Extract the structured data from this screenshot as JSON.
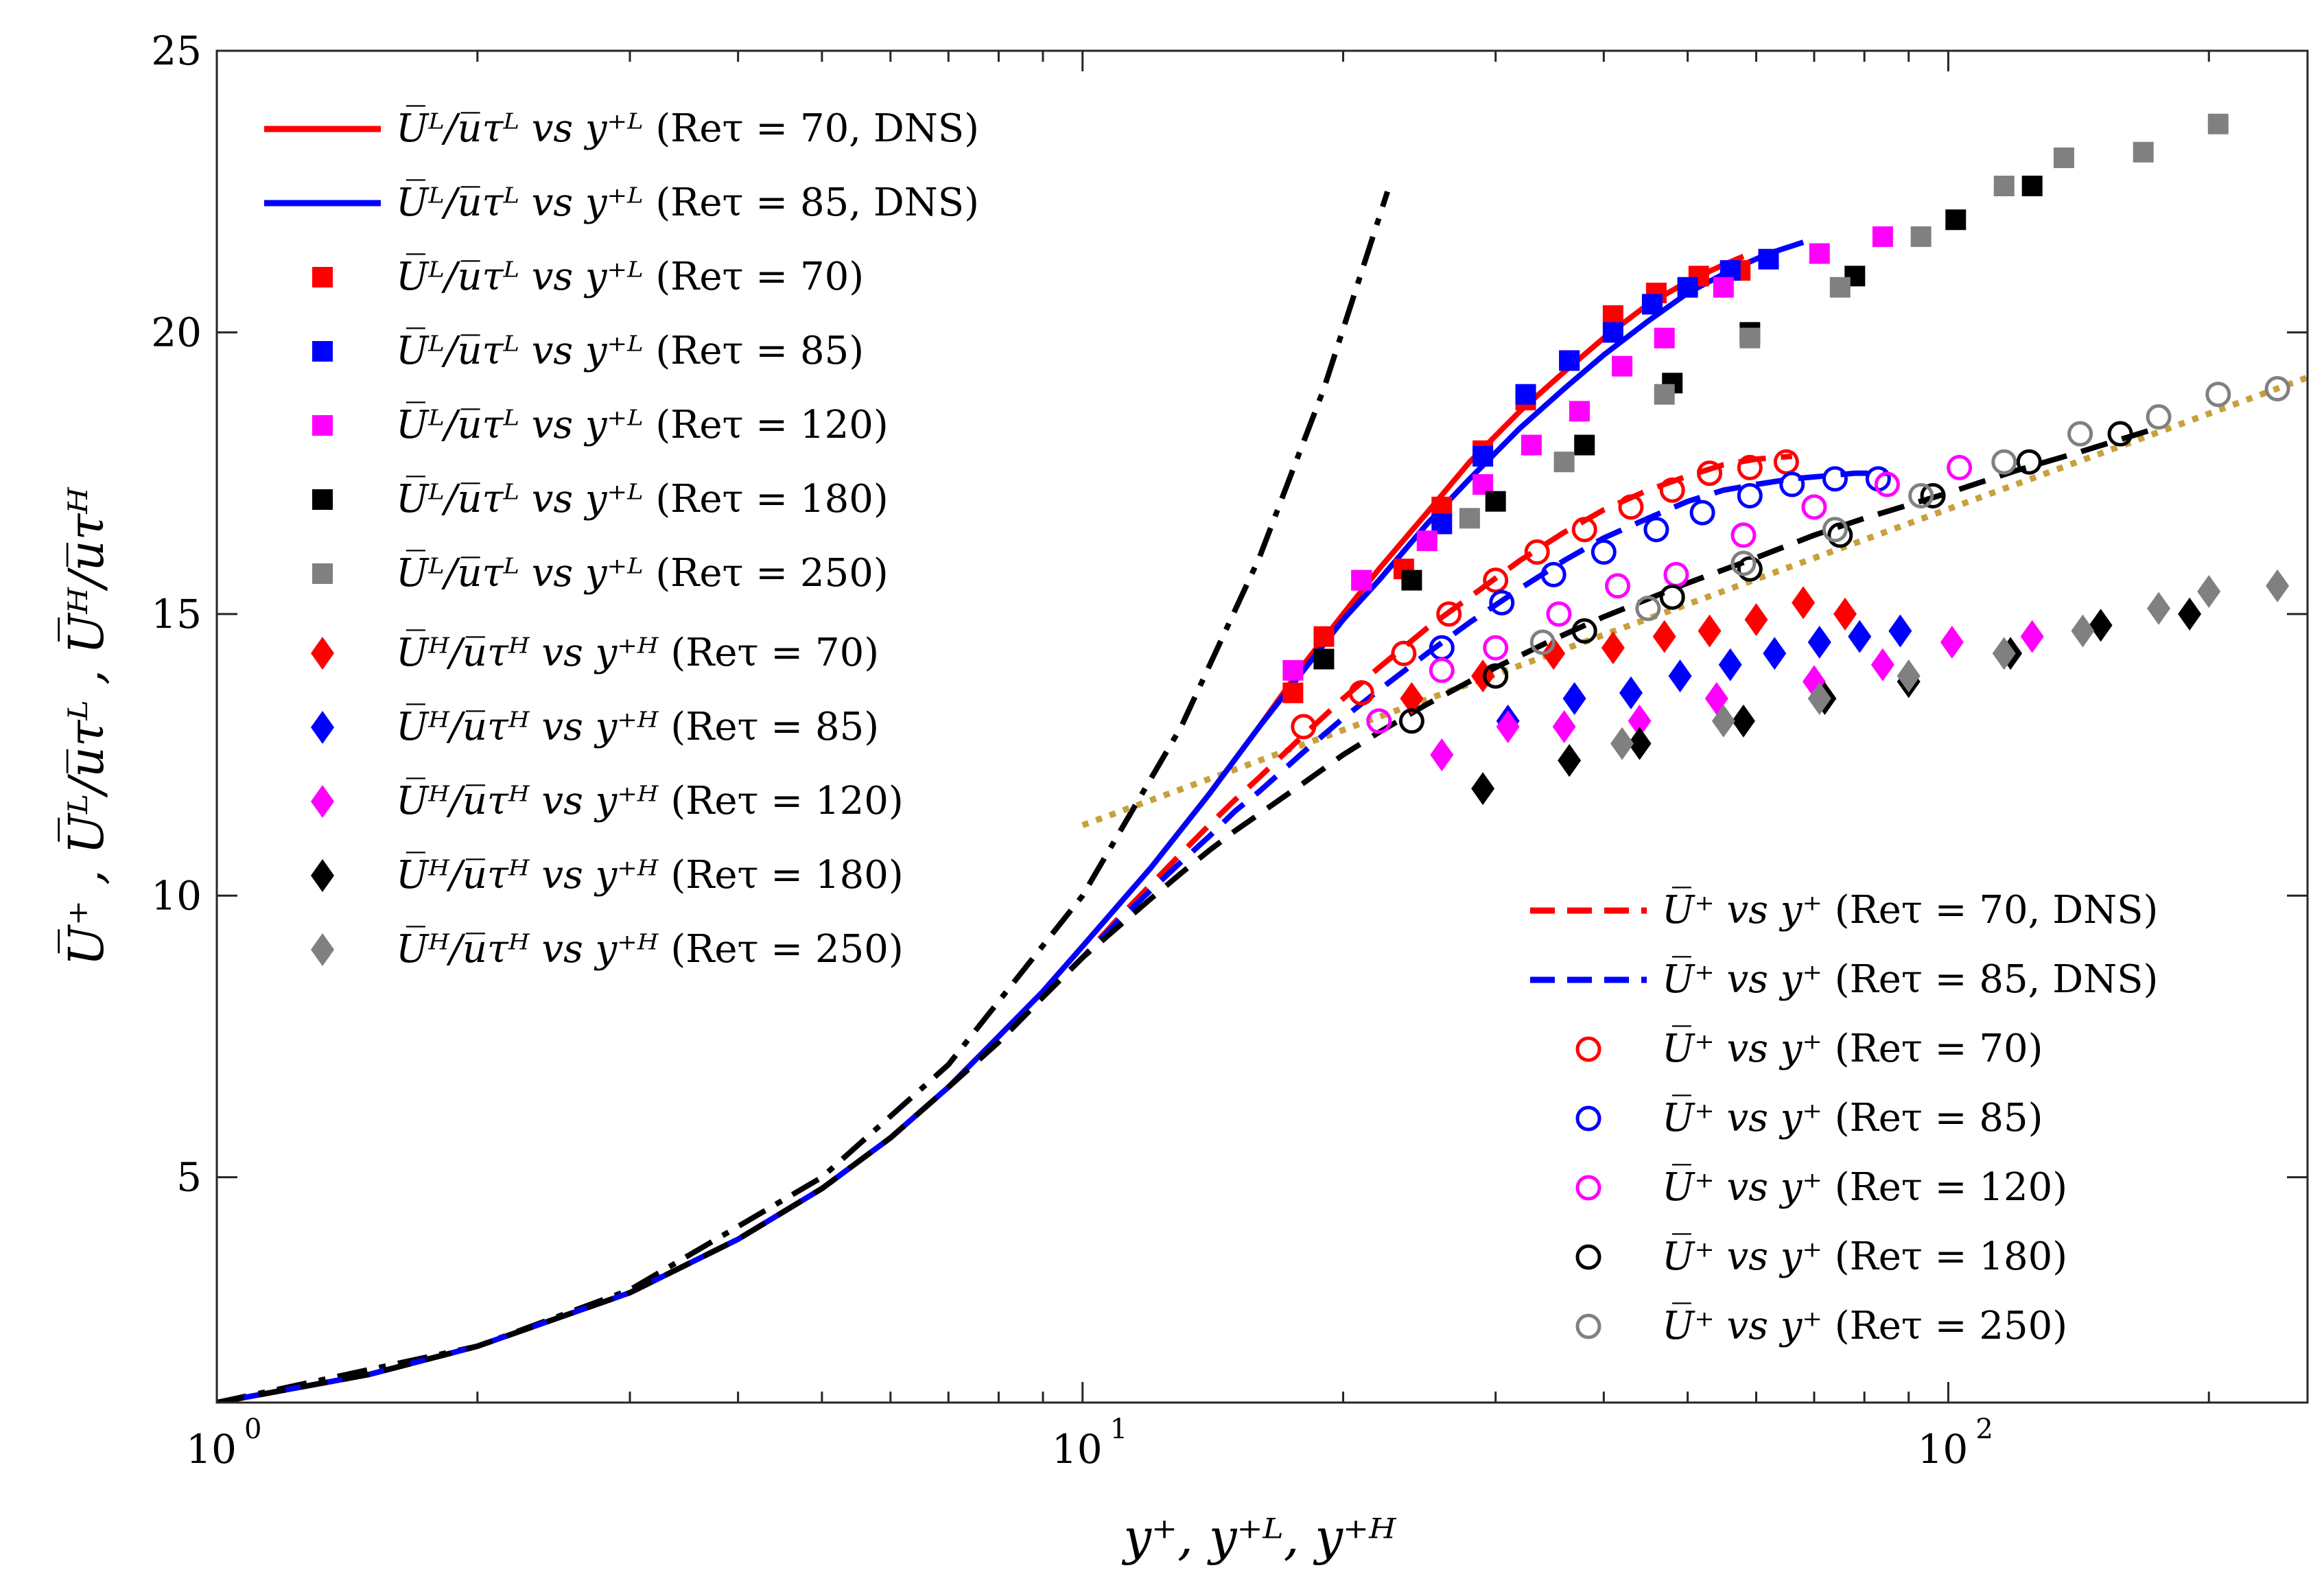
{
  "chart_data": {
    "type": "line",
    "xscale": "log",
    "xlim": [
      1,
      260
    ],
    "ylim": [
      1,
      25
    ],
    "xlabel": "y⁺,  y⁺ᴸ,  y⁺ᴴ",
    "ylabel": "U̅⁺ ,  U̅ᴸ/u̅τᴸ ,  U̅ᴴ/u̅τᴴ",
    "xticks": [
      {
        "value": 1,
        "base": "10",
        "exp": "0"
      },
      {
        "value": 10,
        "base": "10",
        "exp": "1"
      },
      {
        "value": 100,
        "base": "10",
        "exp": "2"
      }
    ],
    "yticks": [
      {
        "value": 5,
        "label": "5"
      },
      {
        "value": 10,
        "label": "10"
      },
      {
        "value": 15,
        "label": "15"
      },
      {
        "value": 20,
        "label": "20"
      },
      {
        "value": 25,
        "label": "25"
      }
    ],
    "reference_lines": [
      {
        "name": "viscous-sublayer",
        "style": "dashdot",
        "color": "#000000",
        "x": [
          1,
          2,
          3,
          5,
          7,
          10,
          13,
          16,
          19,
          22.5
        ],
        "y": [
          1,
          2,
          3,
          5,
          7,
          10,
          13,
          16,
          19,
          22.5
        ]
      },
      {
        "name": "log-law",
        "style": "dotted",
        "color": "#C8A03C",
        "x": [
          10,
          20,
          40,
          80,
          160,
          260
        ],
        "y": [
          11.25,
          12.94,
          14.63,
          16.32,
          18.01,
          19.2
        ]
      }
    ],
    "series": [
      {
        "name": "UL/utauL vs y+L (Re_tau = 70, DNS)",
        "kind": "line",
        "dash": "solid",
        "color": "#FF0000",
        "x": [
          1,
          1.5,
          2,
          3,
          4,
          5,
          6,
          7,
          8,
          9,
          10,
          12,
          14,
          16,
          18,
          20,
          22,
          25,
          28,
          32,
          36,
          40,
          45,
          50,
          55,
          58
        ],
        "y": [
          1,
          1.5,
          2,
          2.95,
          3.9,
          4.8,
          5.7,
          6.6,
          7.5,
          8.3,
          9.1,
          10.5,
          11.8,
          13.0,
          14.1,
          15.0,
          15.8,
          16.8,
          17.7,
          18.6,
          19.3,
          19.9,
          20.5,
          20.9,
          21.2,
          21.35
        ]
      },
      {
        "name": "UL/utauL vs y+L (Re_tau = 85, DNS)",
        "kind": "line",
        "dash": "solid",
        "color": "#0000FF",
        "x": [
          1,
          1.5,
          2,
          3,
          4,
          5,
          6,
          7,
          8,
          9,
          10,
          12,
          14,
          16,
          18,
          20,
          22,
          25,
          28,
          32,
          36,
          40,
          45,
          50,
          56,
          62,
          68
        ],
        "y": [
          1,
          1.5,
          2,
          2.95,
          3.9,
          4.8,
          5.7,
          6.6,
          7.5,
          8.3,
          9.1,
          10.5,
          11.8,
          13.0,
          14.0,
          14.9,
          15.6,
          16.6,
          17.4,
          18.3,
          19.0,
          19.6,
          20.2,
          20.7,
          21.1,
          21.4,
          21.6
        ]
      },
      {
        "name": "U+ vs y+ (Re_tau = 70, DNS)",
        "kind": "line",
        "dash": "dashed",
        "color": "#FF0000",
        "x": [
          1,
          1.5,
          2,
          3,
          4,
          5,
          6,
          7,
          8,
          9,
          10,
          11,
          12,
          13,
          14,
          15,
          16,
          18,
          20,
          22,
          25,
          28,
          32,
          36,
          40,
          45,
          50,
          55,
          60,
          66
        ],
        "y": [
          1,
          1.5,
          2,
          2.95,
          3.9,
          4.8,
          5.7,
          6.6,
          7.4,
          8.2,
          8.9,
          9.6,
          10.2,
          10.75,
          11.25,
          11.7,
          12.1,
          12.85,
          13.5,
          14.05,
          14.75,
          15.3,
          15.95,
          16.45,
          16.85,
          17.2,
          17.45,
          17.65,
          17.75,
          17.8
        ]
      },
      {
        "name": "U+ vs y+ (Re_tau = 85, DNS)",
        "kind": "line",
        "dash": "dashed",
        "color": "#0000FF",
        "x": [
          1,
          1.5,
          2,
          3,
          4,
          5,
          6,
          7,
          8,
          9,
          10,
          11,
          12,
          13,
          14,
          15,
          16,
          18,
          20,
          22,
          25,
          28,
          32,
          36,
          40,
          45,
          50,
          55,
          60,
          66,
          72,
          78,
          85
        ],
        "y": [
          1,
          1.5,
          2,
          2.95,
          3.9,
          4.8,
          5.7,
          6.6,
          7.4,
          8.2,
          8.9,
          9.55,
          10.1,
          10.6,
          11.05,
          11.5,
          11.85,
          12.55,
          13.15,
          13.65,
          14.3,
          14.85,
          15.45,
          15.95,
          16.35,
          16.7,
          17.0,
          17.2,
          17.3,
          17.4,
          17.45,
          17.5,
          17.5
        ]
      },
      {
        "name": "U+ vs y+ (Re_tau = 180)",
        "kind": "line",
        "dash": "dashed",
        "color": "#000000",
        "x": [
          1,
          1.5,
          2,
          3,
          4,
          5,
          6,
          7,
          8,
          9,
          10,
          11,
          12,
          13,
          14,
          15,
          16,
          18,
          20,
          22,
          25,
          30,
          35,
          40,
          50,
          60,
          70,
          80,
          100,
          120,
          140,
          170
        ],
        "y": [
          1,
          1.5,
          2,
          2.95,
          3.9,
          4.8,
          5.7,
          6.6,
          7.4,
          8.2,
          8.9,
          9.45,
          9.95,
          10.4,
          10.8,
          11.15,
          11.45,
          12.0,
          12.5,
          12.9,
          13.4,
          14.05,
          14.55,
          14.95,
          15.55,
          16.0,
          16.4,
          16.7,
          17.15,
          17.55,
          17.85,
          18.25
        ]
      },
      {
        "name": "UL/utauL vs y+L (Re_tau = 70)",
        "kind": "marker",
        "marker": "square",
        "color": "#FF0000",
        "x": [
          17.5,
          19,
          21,
          23.5,
          26,
          29,
          32.5,
          36.5,
          41,
          46,
          51.5,
          57.5
        ],
        "y": [
          13.6,
          14.6,
          15.6,
          15.8,
          16.9,
          17.9,
          18.8,
          19.5,
          20.3,
          20.7,
          21.0,
          21.1
        ]
      },
      {
        "name": "UL/utauL vs y+L (Re_tau = 85)",
        "kind": "marker",
        "marker": "square",
        "color": "#0000FF",
        "x": [
          26,
          29,
          32.5,
          36.5,
          41,
          45.5,
          50,
          56,
          62
        ],
        "y": [
          16.6,
          17.8,
          18.9,
          19.5,
          20.0,
          20.5,
          20.8,
          21.1,
          21.3
        ]
      },
      {
        "name": "UL/utauL vs y+L (Re_tau = 120)",
        "kind": "marker",
        "marker": "square",
        "color": "#FF00FF",
        "x": [
          17.5,
          21,
          25,
          29,
          33,
          37.5,
          42,
          47,
          55,
          71,
          84
        ],
        "y": [
          14.0,
          15.6,
          16.3,
          17.3,
          18.0,
          18.6,
          19.4,
          19.9,
          20.8,
          21.4,
          21.7
        ]
      },
      {
        "name": "UL/utauL vs y+L (Re_tau = 180)",
        "kind": "marker",
        "marker": "square",
        "color": "#000000",
        "x": [
          19,
          24,
          30,
          38,
          48,
          59,
          78,
          102,
          125
        ],
        "y": [
          14.2,
          15.6,
          17.0,
          18.0,
          19.1,
          20.0,
          21.0,
          22.0,
          22.6
        ]
      },
      {
        "name": "UL/utauL vs y+L (Re_tau = 250)",
        "kind": "marker",
        "marker": "square",
        "color": "#808080",
        "x": [
          28,
          36,
          47,
          59,
          75,
          93,
          116,
          136,
          168,
          205
        ],
        "y": [
          16.7,
          17.7,
          18.9,
          19.9,
          20.8,
          21.7,
          22.6,
          23.1,
          23.2,
          23.7
        ]
      },
      {
        "name": "UH/utauH vs y+H (Re_tau = 70)",
        "kind": "marker",
        "marker": "diamond",
        "color": "#FF0000",
        "x": [
          24,
          29,
          35,
          41,
          47,
          53,
          60,
          68,
          76
        ],
        "y": [
          13.5,
          13.9,
          14.3,
          14.4,
          14.6,
          14.7,
          14.9,
          15.2,
          15.0
        ]
      },
      {
        "name": "UH/utauH vs y+H (Re_tau = 85)",
        "kind": "marker",
        "marker": "diamond",
        "color": "#0000FF",
        "x": [
          31,
          37,
          43,
          49,
          56,
          63,
          71,
          79,
          88
        ],
        "y": [
          13.1,
          13.5,
          13.6,
          13.9,
          14.1,
          14.3,
          14.5,
          14.6,
          14.7
        ]
      },
      {
        "name": "UH/utauH vs y+H (Re_tau = 120)",
        "kind": "marker",
        "marker": "diamond",
        "color": "#FF00FF",
        "x": [
          26,
          31,
          36,
          44,
          54,
          70,
          84,
          101,
          125
        ],
        "y": [
          12.5,
          13.0,
          13.0,
          13.1,
          13.5,
          13.8,
          14.1,
          14.5,
          14.6
        ]
      },
      {
        "name": "UH/utauH vs y+H (Re_tau = 180)",
        "kind": "marker",
        "marker": "diamond",
        "color": "#000000",
        "x": [
          29,
          36.5,
          44,
          58,
          72,
          90,
          118,
          150,
          190
        ],
        "y": [
          11.9,
          12.4,
          12.7,
          13.1,
          13.5,
          13.8,
          14.3,
          14.8,
          15.0
        ]
      },
      {
        "name": "UH/utauH vs y+H (Re_tau = 250)",
        "kind": "marker",
        "marker": "diamond",
        "color": "#808080",
        "x": [
          42,
          55,
          71,
          90,
          116,
          143,
          175,
          200,
          240
        ],
        "y": [
          12.7,
          13.1,
          13.5,
          13.9,
          14.3,
          14.7,
          15.1,
          15.4,
          15.5
        ]
      },
      {
        "name": "U+ vs y+ (Re_tau = 70)",
        "kind": "marker",
        "marker": "circle",
        "color": "#FF0000",
        "x": [
          18,
          21,
          23.5,
          26.5,
          30,
          33.5,
          38,
          43,
          48,
          53,
          59,
          65
        ],
        "y": [
          13.0,
          13.6,
          14.3,
          15.0,
          15.6,
          16.1,
          16.5,
          16.9,
          17.2,
          17.5,
          17.6,
          17.7
        ]
      },
      {
        "name": "U+ vs y+ (Re_tau = 85)",
        "kind": "marker",
        "marker": "circle",
        "color": "#0000FF",
        "x": [
          26,
          30.5,
          35,
          40,
          46,
          52,
          59,
          66,
          74,
          83
        ],
        "y": [
          14.4,
          15.2,
          15.7,
          16.1,
          16.5,
          16.8,
          17.1,
          17.3,
          17.4,
          17.4
        ]
      },
      {
        "name": "U+ vs y+ (Re_tau = 120)",
        "kind": "marker",
        "marker": "circle",
        "color": "#FF00FF",
        "x": [
          22,
          26,
          30,
          35.5,
          41.5,
          48.5,
          58,
          70,
          85,
          103
        ],
        "y": [
          13.1,
          14.0,
          14.4,
          15.0,
          15.5,
          15.7,
          16.4,
          16.9,
          17.3,
          17.6
        ]
      },
      {
        "name": "U+ vs y+ (Re_tau = 180)",
        "kind": "marker",
        "marker": "circle",
        "color": "#000000",
        "x": [
          24,
          30,
          38,
          48,
          59,
          75,
          96,
          124,
          158
        ],
        "y": [
          13.1,
          13.9,
          14.7,
          15.3,
          15.8,
          16.4,
          17.1,
          17.7,
          18.2
        ]
      },
      {
        "name": "U+ vs y+ (Re_tau = 250)",
        "kind": "marker",
        "marker": "circle",
        "color": "#808080",
        "x": [
          34,
          45,
          58,
          74,
          93,
          116,
          142,
          175,
          205,
          240
        ],
        "y": [
          14.5,
          15.1,
          15.9,
          16.5,
          17.1,
          17.7,
          18.2,
          18.5,
          18.9,
          19.0
        ]
      }
    ],
    "legend_left": {
      "location": "top-left",
      "entries": [
        {
          "series": 0,
          "formula": "U̅ᴸ/u̅τᴸ vs y⁺ᴸ",
          "param": "(Reτ = 70, DNS)"
        },
        {
          "series": 1,
          "formula": "U̅ᴸ/u̅τᴸ vs y⁺ᴸ",
          "param": "(Reτ = 85, DNS)"
        },
        {
          "series": 5,
          "formula": "U̅ᴸ/u̅τᴸ vs y⁺ᴸ",
          "param": "(Reτ = 70)"
        },
        {
          "series": 6,
          "formula": "U̅ᴸ/u̅τᴸ vs y⁺ᴸ",
          "param": "(Reτ = 85)"
        },
        {
          "series": 7,
          "formula": "U̅ᴸ/u̅τᴸ vs y⁺ᴸ",
          "param": "(Reτ = 120)"
        },
        {
          "series": 8,
          "formula": "U̅ᴸ/u̅τᴸ vs y⁺ᴸ",
          "param": "(Reτ = 180)"
        },
        {
          "series": 9,
          "formula": "U̅ᴸ/u̅τᴸ vs y⁺ᴸ",
          "param": "(Reτ = 250)"
        },
        {
          "series": 10,
          "formula": "U̅ᴴ/u̅τᴴ vs y⁺ᴴ",
          "param": "(Reτ = 70)"
        },
        {
          "series": 11,
          "formula": "U̅ᴴ/u̅τᴴ vs y⁺ᴴ",
          "param": "(Reτ = 85)"
        },
        {
          "series": 12,
          "formula": "U̅ᴴ/u̅τᴴ vs y⁺ᴴ",
          "param": "(Reτ = 120)"
        },
        {
          "series": 13,
          "formula": "U̅ᴴ/u̅τᴴ vs y⁺ᴴ",
          "param": "(Reτ = 180)"
        },
        {
          "series": 14,
          "formula": "U̅ᴴ/u̅τᴴ vs y⁺ᴴ",
          "param": "(Reτ = 250)"
        }
      ]
    },
    "legend_right": {
      "location": "bottom-right",
      "entries": [
        {
          "series": 2,
          "formula": "U̅⁺ vs y⁺",
          "param": "(Reτ = 70, DNS)"
        },
        {
          "series": 3,
          "formula": "U̅⁺ vs y⁺",
          "param": "(Reτ = 85, DNS)"
        },
        {
          "series": 15,
          "formula": "U̅⁺ vs y⁺",
          "param": "(Reτ = 70)"
        },
        {
          "series": 16,
          "formula": "U̅⁺ vs y⁺",
          "param": "(Reτ = 85)"
        },
        {
          "series": 17,
          "formula": "U̅⁺ vs y⁺",
          "param": "(Reτ = 120)"
        },
        {
          "series": 18,
          "formula": "U̅⁺ vs y⁺",
          "param": "(Reτ = 180)"
        },
        {
          "series": 19,
          "formula": "U̅⁺ vs y⁺",
          "param": "(Reτ = 250)"
        }
      ]
    }
  }
}
